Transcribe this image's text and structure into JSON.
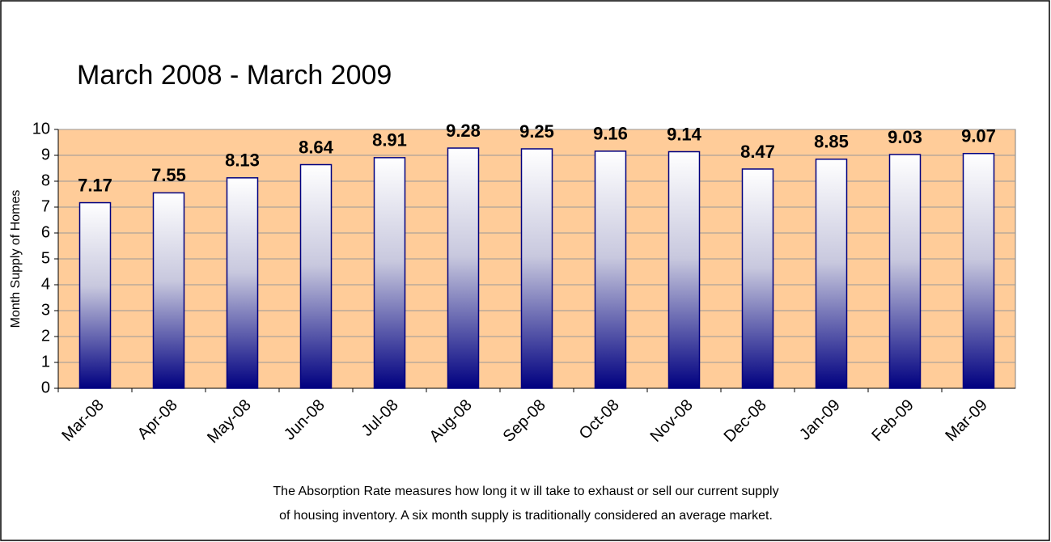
{
  "chart_data": {
    "type": "bar",
    "title": "March 2008 - March 2009",
    "y_label": "Month Supply of Homes",
    "categories": [
      "Mar-08",
      "Apr-08",
      "May-08",
      "Jun-08",
      "Jul-08",
      "Aug-08",
      "Sep-08",
      "Oct-08",
      "Nov-08",
      "Dec-08",
      "Jan-09",
      "Feb-09",
      "Mar-09"
    ],
    "values": [
      7.17,
      7.55,
      8.13,
      8.64,
      8.91,
      9.28,
      9.25,
      9.16,
      9.14,
      8.47,
      8.85,
      9.03,
      9.07
    ],
    "color": "#000080",
    "plot_background": "#FFCC99",
    "ylim": [
      0,
      10
    ],
    "yticks": [
      0,
      1,
      2,
      3,
      4,
      5,
      6,
      7,
      8,
      9,
      10
    ],
    "grid": true,
    "note": [
      "The Absorption Rate measures how  long it w ill take to exhaust or sell our current supply",
      "of housing inventory.  A six month supply is traditionally considered an average market."
    ]
  }
}
